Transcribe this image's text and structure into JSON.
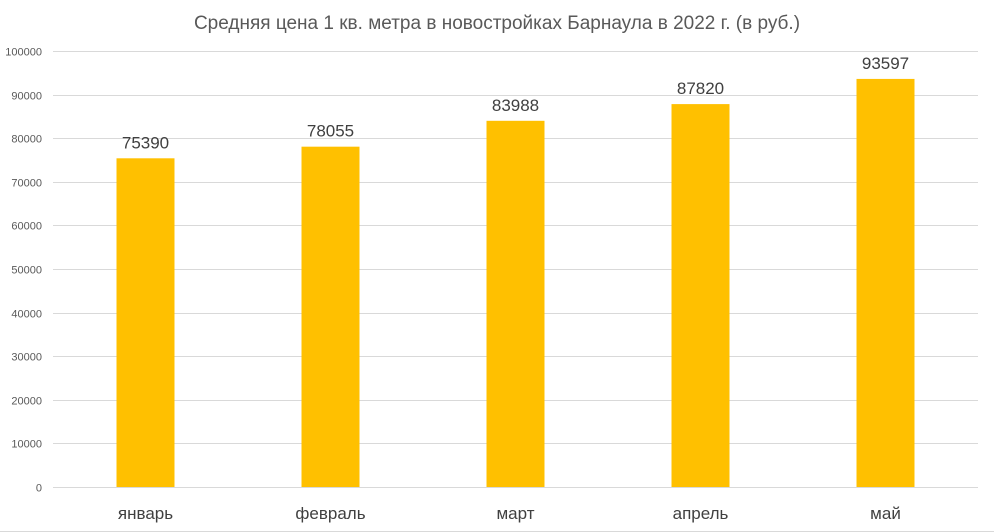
{
  "chart_data": {
    "type": "bar",
    "title": "Средняя цена 1 кв. метра в новостройках Барнаула в 2022 г. (в руб.)",
    "xlabel": "",
    "ylabel": "",
    "categories": [
      "январь",
      "февраль",
      "март",
      "апрель",
      "май"
    ],
    "values": [
      75390,
      78055,
      83988,
      87820,
      93597
    ],
    "data_labels": [
      "75390",
      "78055",
      "83988",
      "87820",
      "93597"
    ],
    "ylim": [
      0,
      100000
    ],
    "y_ticks": [
      0,
      10000,
      20000,
      30000,
      40000,
      50000,
      60000,
      70000,
      80000,
      90000,
      100000
    ],
    "y_tick_labels": [
      "0",
      "10000",
      "20000",
      "30000",
      "40000",
      "50000",
      "60000",
      "70000",
      "80000",
      "90000",
      "100000"
    ],
    "grid": true,
    "legend": "none",
    "colors": {
      "bar": "#FFC000",
      "grid": "#d9d9d9",
      "axis": "#d9d9d9"
    }
  }
}
